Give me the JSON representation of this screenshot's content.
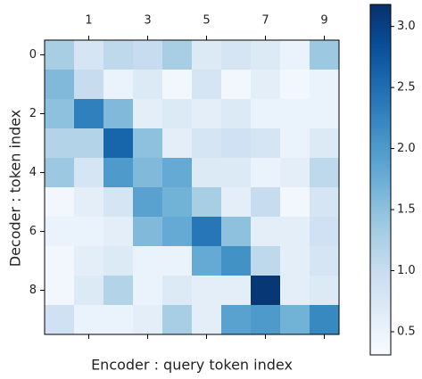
{
  "chart_data": {
    "type": "heatmap",
    "xlabel": "Encoder : query token index",
    "ylabel": "Decoder : token index",
    "xticks": [
      1,
      3,
      5,
      7,
      9
    ],
    "yticks": [
      0,
      2,
      4,
      6,
      8
    ],
    "colormap": "Blues",
    "clim": [
      0.31,
      3.18
    ],
    "cticks": [
      0.5,
      {
        "value": 1,
        "label": "1.0"
      },
      1.5,
      {
        "value": 2,
        "label": "2.0"
      },
      2.5,
      {
        "value": 3,
        "label": "3.0"
      }
    ],
    "values": [
      [
        1.3,
        0.8,
        1.1,
        1.0,
        1.3,
        0.7,
        0.8,
        0.7,
        0.5,
        1.4
      ],
      [
        1.6,
        1.0,
        0.5,
        0.7,
        0.4,
        0.8,
        0.4,
        0.6,
        0.4,
        0.5
      ],
      [
        1.5,
        2.3,
        1.6,
        0.6,
        0.7,
        0.6,
        0.7,
        0.5,
        0.5,
        0.5
      ],
      [
        1.2,
        1.2,
        2.6,
        1.5,
        0.6,
        0.8,
        0.9,
        0.8,
        0.5,
        0.7
      ],
      [
        1.4,
        0.8,
        2.0,
        1.6,
        1.8,
        0.7,
        0.7,
        0.5,
        0.6,
        1.1
      ],
      [
        0.4,
        0.6,
        0.8,
        1.9,
        1.7,
        1.3,
        0.6,
        1.0,
        0.4,
        0.8
      ],
      [
        0.5,
        0.5,
        0.6,
        1.6,
        1.8,
        2.4,
        1.5,
        0.6,
        0.6,
        0.9
      ],
      [
        0.4,
        0.6,
        0.7,
        0.5,
        0.5,
        1.8,
        2.1,
        1.1,
        0.6,
        0.8
      ],
      [
        0.4,
        0.7,
        1.2,
        0.5,
        0.7,
        0.6,
        0.6,
        3.1,
        0.6,
        0.7
      ],
      [
        0.9,
        0.5,
        0.5,
        0.6,
        1.3,
        0.6,
        1.9,
        2.0,
        1.7,
        2.2
      ]
    ]
  }
}
